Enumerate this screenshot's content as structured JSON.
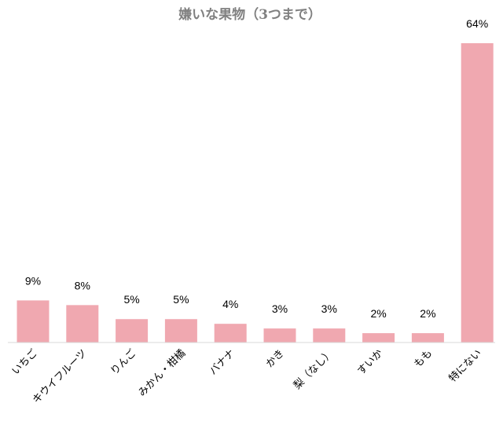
{
  "chart_data": {
    "type": "bar",
    "title": "嫌いな果物（3つまで）",
    "categories": [
      "いちご",
      "キウイフルーツ",
      "りんご",
      "みかん・柑橘",
      "バナナ",
      "かき",
      "梨（なし）",
      "すいか",
      "もも",
      "特にない"
    ],
    "values": [
      9,
      8,
      5,
      5,
      4,
      3,
      3,
      2,
      2,
      64
    ],
    "value_labels": [
      "9%",
      "8%",
      "5%",
      "5%",
      "4%",
      "3%",
      "3%",
      "2%",
      "2%",
      "64%"
    ],
    "unit": "%",
    "ylim": [
      0,
      64
    ],
    "grid": false,
    "legend": "none",
    "bar_color": "#F0A8B0",
    "baseline_color": "#D9D9D9"
  }
}
